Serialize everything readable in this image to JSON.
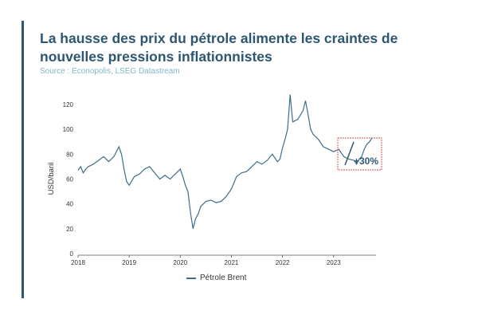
{
  "header": {
    "title": "La hausse des prix du pétrole alimente les craintes de nouvelles pressions inflationnistes",
    "source": "Source : Econopolis, LSEG Datastream"
  },
  "colors": {
    "line": "#3a6e8c",
    "title": "#2d5672",
    "source": "#7fb6c9",
    "annotation_box": "#d9534f",
    "accent_bar": "#2d5672"
  },
  "chart_data": {
    "type": "line",
    "title": "La hausse des prix du pétrole alimente les craintes de nouvelles pressions inflationnistes",
    "ylabel": "USD/baril",
    "xlabel": "",
    "ylim": [
      0,
      120
    ],
    "yticks": [
      0,
      20,
      40,
      60,
      80,
      100,
      120
    ],
    "xlim": [
      2018,
      2023.83
    ],
    "xticks": [
      "2018",
      "2019",
      "2020",
      "2021",
      "2022",
      "2023"
    ],
    "grid": false,
    "legend": "bottom-center",
    "annotation": "+30%",
    "series": [
      {
        "name": "Pétrole Brent",
        "x": [
          2018.0,
          2018.05,
          2018.1,
          2018.15,
          2018.2,
          2018.3,
          2018.4,
          2018.5,
          2018.6,
          2018.7,
          2018.75,
          2018.8,
          2018.85,
          2018.9,
          2018.95,
          2019.0,
          2019.1,
          2019.2,
          2019.3,
          2019.4,
          2019.5,
          2019.6,
          2019.7,
          2019.8,
          2019.9,
          2020.0,
          2020.05,
          2020.1,
          2020.15,
          2020.2,
          2020.25,
          2020.3,
          2020.35,
          2020.4,
          2020.5,
          2020.6,
          2020.7,
          2020.8,
          2020.9,
          2021.0,
          2021.1,
          2021.2,
          2021.3,
          2021.4,
          2021.5,
          2021.6,
          2021.7,
          2021.8,
          2021.9,
          2021.95,
          2022.0,
          2022.05,
          2022.1,
          2022.15,
          2022.2,
          2022.3,
          2022.4,
          2022.45,
          2022.5,
          2022.55,
          2022.6,
          2022.7,
          2022.8,
          2022.9,
          2023.0,
          2023.1,
          2023.2,
          2023.3,
          2023.4,
          2023.45,
          2023.5,
          2023.55,
          2023.6,
          2023.65,
          2023.7,
          2023.75
        ],
        "values": [
          67,
          70,
          65,
          68,
          70,
          72,
          75,
          78,
          74,
          78,
          82,
          86,
          80,
          68,
          58,
          55,
          62,
          64,
          68,
          70,
          65,
          60,
          63,
          60,
          64,
          68,
          62,
          55,
          50,
          33,
          20,
          28,
          32,
          38,
          42,
          43,
          41,
          42,
          46,
          52,
          62,
          65,
          66,
          70,
          74,
          72,
          75,
          80,
          74,
          76,
          85,
          92,
          100,
          128,
          106,
          108,
          115,
          123,
          112,
          100,
          96,
          92,
          86,
          84,
          82,
          84,
          78,
          76,
          75,
          72,
          76,
          78,
          84,
          88,
          90,
          93
        ]
      }
    ]
  }
}
